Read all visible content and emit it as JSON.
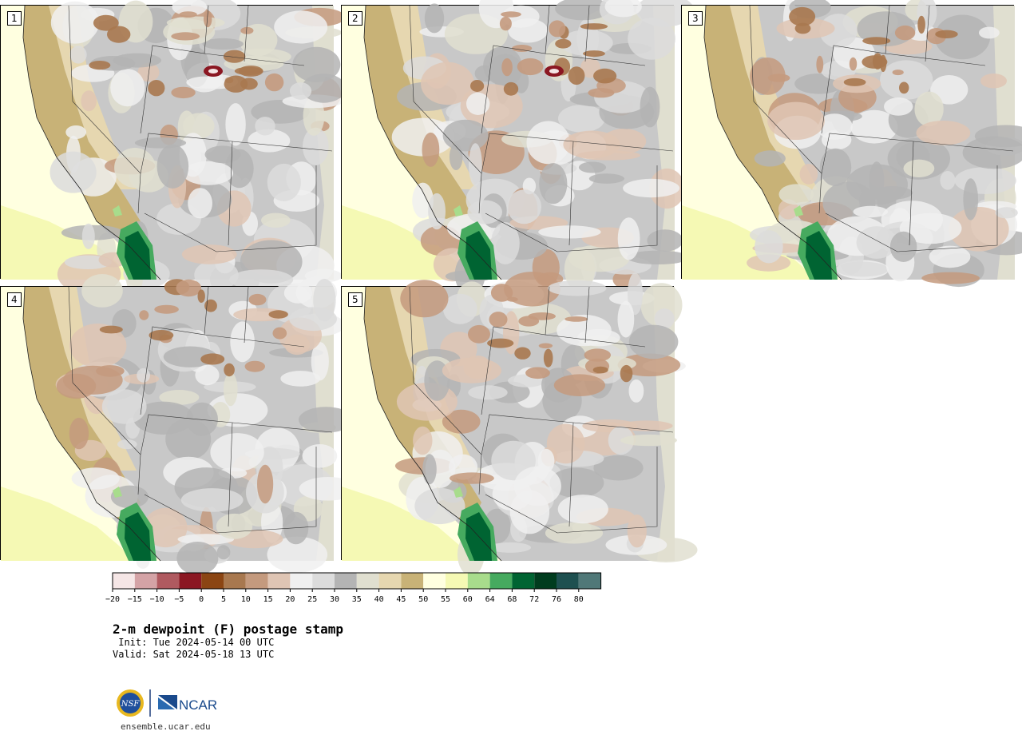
{
  "panels": [
    {
      "label": "1"
    },
    {
      "label": "2"
    },
    {
      "label": "3"
    },
    {
      "label": "4"
    },
    {
      "label": "5"
    }
  ],
  "colorbar": {
    "ticks": [
      "−20",
      "−15",
      "−10",
      "−5",
      "0",
      "5",
      "10",
      "15",
      "20",
      "25",
      "30",
      "35",
      "40",
      "45",
      "50",
      "55",
      "60",
      "64",
      "68",
      "72",
      "76",
      "80"
    ],
    "colors": [
      "#f5e6e6",
      "#d4a3a6",
      "#b05a60",
      "#8b1722",
      "#8b4513",
      "#a8784f",
      "#c49a7e",
      "#dfc5b4",
      "#f0f0f0",
      "#dcdcdc",
      "#b4b4b4",
      "#e0dfd0",
      "#e6d7b0",
      "#c8b277",
      "#ffffe0",
      "#f5f9b4",
      "#a8dc8c",
      "#46aa5f",
      "#006432",
      "#003c1e",
      "#1e5050",
      "#507878"
    ]
  },
  "title": "2-m dewpoint (F) postage stamp",
  "init": " Init: Tue 2024-05-14 00 UTC",
  "valid": "Valid: Sat 2024-05-18 13 UTC",
  "logo": {
    "nsf": "NSF",
    "ncar": "NCAR"
  },
  "url": "ensemble.ucar.edu"
}
